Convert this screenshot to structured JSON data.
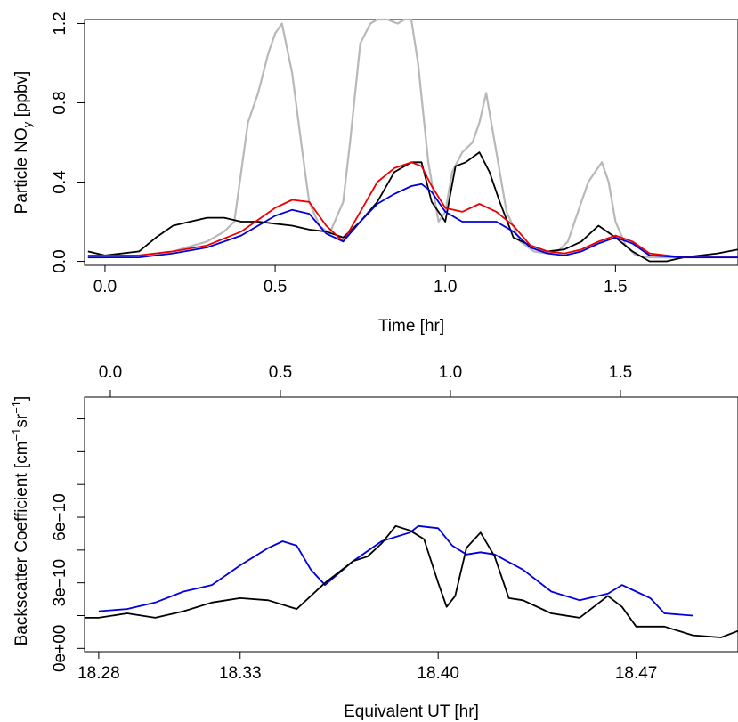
{
  "chart_data": [
    {
      "type": "line",
      "xlabel": "Time [hr]",
      "ylabel": "Particle NO",
      "ylabel_sub": "y",
      "ylabel_suffix": " [ppbv]",
      "xlim": [
        -0.06,
        1.86
      ],
      "ylim": [
        -0.02,
        1.22
      ],
      "x_ticks": [
        0.0,
        0.5,
        1.0,
        1.5
      ],
      "x_tick_labels": [
        "0.0",
        "0.5",
        "1.0",
        "1.5"
      ],
      "y_ticks": [
        0.0,
        0.4,
        0.8,
        1.2
      ],
      "y_tick_labels": [
        "0.0",
        "0.4",
        "0.8",
        "1.2"
      ],
      "grid": false,
      "series": [
        {
          "color": "#b8b8b8",
          "x": [
            -0.05,
            0.0,
            0.1,
            0.2,
            0.3,
            0.35,
            0.38,
            0.4,
            0.42,
            0.45,
            0.48,
            0.5,
            0.52,
            0.55,
            0.58,
            0.6,
            0.63,
            0.66,
            0.7,
            0.72,
            0.75,
            0.78,
            0.8,
            0.83,
            0.86,
            0.88,
            0.9,
            0.92,
            0.95,
            0.98,
            1.0,
            1.02,
            1.05,
            1.08,
            1.1,
            1.12,
            1.15,
            1.18,
            1.22,
            1.26,
            1.3,
            1.33,
            1.36,
            1.38,
            1.4,
            1.42,
            1.44,
            1.46,
            1.48,
            1.5,
            1.53,
            1.56,
            1.6,
            1.7,
            1.86
          ],
          "y": [
            0.02,
            0.02,
            0.03,
            0.05,
            0.1,
            0.15,
            0.2,
            0.45,
            0.7,
            0.85,
            1.05,
            1.15,
            1.2,
            0.95,
            0.55,
            0.3,
            0.18,
            0.14,
            0.3,
            0.6,
            1.1,
            1.2,
            1.25,
            1.25,
            1.2,
            1.22,
            1.25,
            1.0,
            0.5,
            0.2,
            0.25,
            0.45,
            0.55,
            0.6,
            0.7,
            0.85,
            0.55,
            0.25,
            0.1,
            0.05,
            0.04,
            0.05,
            0.1,
            0.2,
            0.3,
            0.4,
            0.45,
            0.5,
            0.4,
            0.2,
            0.08,
            0.03,
            0.02,
            0.02,
            0.02
          ]
        },
        {
          "color": "#000000",
          "x": [
            -0.05,
            0.0,
            0.1,
            0.15,
            0.2,
            0.25,
            0.3,
            0.35,
            0.4,
            0.45,
            0.5,
            0.55,
            0.6,
            0.65,
            0.7,
            0.75,
            0.8,
            0.85,
            0.9,
            0.93,
            0.96,
            1.0,
            1.03,
            1.06,
            1.1,
            1.13,
            1.16,
            1.2,
            1.25,
            1.3,
            1.35,
            1.4,
            1.45,
            1.5,
            1.55,
            1.6,
            1.65,
            1.7,
            1.75,
            1.8,
            1.86
          ],
          "y": [
            0.05,
            0.03,
            0.05,
            0.12,
            0.18,
            0.2,
            0.22,
            0.22,
            0.2,
            0.2,
            0.19,
            0.18,
            0.16,
            0.15,
            0.12,
            0.2,
            0.3,
            0.45,
            0.5,
            0.5,
            0.3,
            0.2,
            0.48,
            0.5,
            0.55,
            0.45,
            0.3,
            0.12,
            0.08,
            0.05,
            0.06,
            0.1,
            0.18,
            0.12,
            0.05,
            0.0,
            0.0,
            0.02,
            0.03,
            0.04,
            0.06
          ]
        },
        {
          "color": "#ee0000",
          "x": [
            -0.05,
            0.1,
            0.2,
            0.3,
            0.4,
            0.5,
            0.55,
            0.6,
            0.65,
            0.7,
            0.75,
            0.8,
            0.85,
            0.9,
            0.93,
            0.96,
            1.0,
            1.05,
            1.1,
            1.15,
            1.2,
            1.25,
            1.3,
            1.35,
            1.4,
            1.45,
            1.5,
            1.55,
            1.6,
            1.7,
            1.86
          ],
          "y": [
            0.03,
            0.03,
            0.05,
            0.08,
            0.15,
            0.27,
            0.31,
            0.3,
            0.18,
            0.1,
            0.25,
            0.4,
            0.47,
            0.5,
            0.48,
            0.38,
            0.27,
            0.25,
            0.29,
            0.25,
            0.18,
            0.08,
            0.05,
            0.04,
            0.06,
            0.1,
            0.13,
            0.1,
            0.04,
            0.02,
            0.02
          ]
        },
        {
          "color": "#0000dd",
          "x": [
            -0.05,
            0.1,
            0.2,
            0.3,
            0.4,
            0.5,
            0.55,
            0.6,
            0.65,
            0.7,
            0.75,
            0.8,
            0.85,
            0.9,
            0.93,
            0.96,
            1.0,
            1.05,
            1.1,
            1.15,
            1.2,
            1.25,
            1.3,
            1.35,
            1.4,
            1.45,
            1.5,
            1.55,
            1.6,
            1.7,
            1.86
          ],
          "y": [
            0.02,
            0.02,
            0.04,
            0.07,
            0.13,
            0.23,
            0.26,
            0.24,
            0.14,
            0.1,
            0.2,
            0.29,
            0.34,
            0.38,
            0.39,
            0.35,
            0.25,
            0.2,
            0.2,
            0.2,
            0.15,
            0.07,
            0.04,
            0.03,
            0.05,
            0.09,
            0.12,
            0.09,
            0.03,
            0.02,
            0.02
          ]
        }
      ]
    },
    {
      "type": "line",
      "xlabel": "Equivalent UT [hr]",
      "ylabel": "Backscatter Coefficient [cm",
      "ylabel_sup1": "−1",
      "ylabel_mid": "sr",
      "ylabel_sup2": "−1",
      "ylabel_end": "]",
      "xlim": [
        18.275,
        18.506
      ],
      "ylim": [
        -1.5e-11,
        1.15e-09
      ],
      "x_ticks": [
        18.28,
        18.33,
        18.4,
        18.47
      ],
      "x_tick_labels": [
        "18.28",
        "18.33",
        "18.40",
        "18.47"
      ],
      "y_ticks": [
        0,
        1.5e-10,
        3e-10,
        4.5e-10,
        6e-10,
        7.5e-10,
        9e-10,
        1.05e-09
      ],
      "y_tick_labels": [
        "0e+00",
        "",
        "3e−10",
        "",
        "6e−10",
        "",
        "",
        ""
      ],
      "top_axis": {
        "ticks": [
          0.0,
          0.5,
          1.0,
          1.5
        ],
        "tick_labels": [
          "0.0",
          "0.5",
          "1.0",
          "1.5"
        ]
      },
      "grid": false,
      "series": [
        {
          "color": "#0000dd",
          "x": [
            18.28,
            18.29,
            18.3,
            18.31,
            18.32,
            18.33,
            18.335,
            18.34,
            18.345,
            18.35,
            18.355,
            18.36,
            18.37,
            18.38,
            18.39,
            18.393,
            18.4,
            18.405,
            18.41,
            18.415,
            18.42,
            18.43,
            18.44,
            18.45,
            18.46,
            18.465,
            18.47,
            18.475,
            18.48,
            18.49
          ],
          "y": [
            1.7e-10,
            1.8e-10,
            2.1e-10,
            2.6e-10,
            2.9e-10,
            3.8e-10,
            4.2e-10,
            4.6e-10,
            4.9e-10,
            4.7e-10,
            3.6e-10,
            2.9e-10,
            4e-10,
            4.9e-10,
            5.3e-10,
            5.6e-10,
            5.5e-10,
            4.7e-10,
            4.3e-10,
            4.4e-10,
            4.3e-10,
            3.6e-10,
            2.6e-10,
            2.2e-10,
            2.5e-10,
            2.9e-10,
            2.6e-10,
            2.3e-10,
            1.6e-10,
            1.5e-10
          ]
        },
        {
          "color": "#000000",
          "x": [
            18.275,
            18.28,
            18.29,
            18.3,
            18.31,
            18.32,
            18.33,
            18.34,
            18.35,
            18.36,
            18.37,
            18.375,
            18.38,
            18.385,
            18.39,
            18.395,
            18.4,
            18.403,
            18.406,
            18.41,
            18.415,
            18.42,
            18.425,
            18.43,
            18.44,
            18.45,
            18.46,
            18.465,
            18.47,
            18.48,
            18.49,
            18.5,
            18.506
          ],
          "y": [
            1.4e-10,
            1.4e-10,
            1.6e-10,
            1.4e-10,
            1.7e-10,
            2.1e-10,
            2.3e-10,
            2.2e-10,
            1.8e-10,
            3e-10,
            4e-10,
            4.2e-10,
            4.8e-10,
            5.6e-10,
            5.4e-10,
            5e-10,
            3e-10,
            1.9e-10,
            2.4e-10,
            4.6e-10,
            5.3e-10,
            4.2e-10,
            2.3e-10,
            2.2e-10,
            1.6e-10,
            1.4e-10,
            2.4e-10,
            1.9e-10,
            1e-10,
            1e-10,
            6e-11,
            5e-11,
            8e-11
          ]
        }
      ]
    }
  ]
}
